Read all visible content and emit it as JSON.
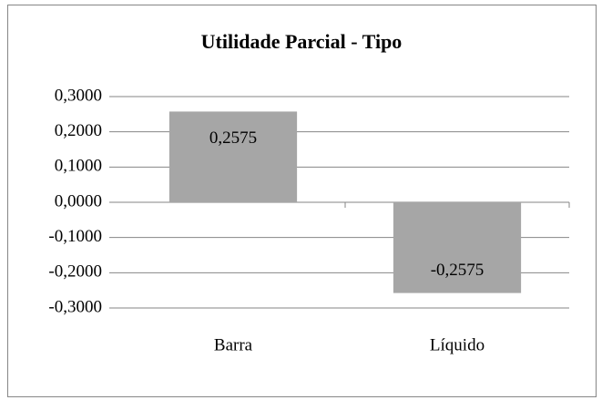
{
  "chart_data": {
    "type": "bar",
    "title": "Utilidade Parcial - Tipo",
    "categories": [
      "Barra",
      "Líquido"
    ],
    "values": [
      0.2575,
      -0.2575
    ],
    "value_labels": [
      "0,2575",
      "-0,2575"
    ],
    "color": "#a6a6a6",
    "ylim": [
      -0.3,
      0.3
    ],
    "yticks": [
      {
        "value": -0.3,
        "label": "-0,3000"
      },
      {
        "value": -0.2,
        "label": "-0,2000"
      },
      {
        "value": -0.1,
        "label": "-0,1000"
      },
      {
        "value": 0,
        "label": "0,0000"
      },
      {
        "value": 0.1,
        "label": "0,1000"
      },
      {
        "value": 0.2,
        "label": "0,2000"
      },
      {
        "value": 0.3,
        "label": "0,3000"
      }
    ],
    "grid": true
  }
}
